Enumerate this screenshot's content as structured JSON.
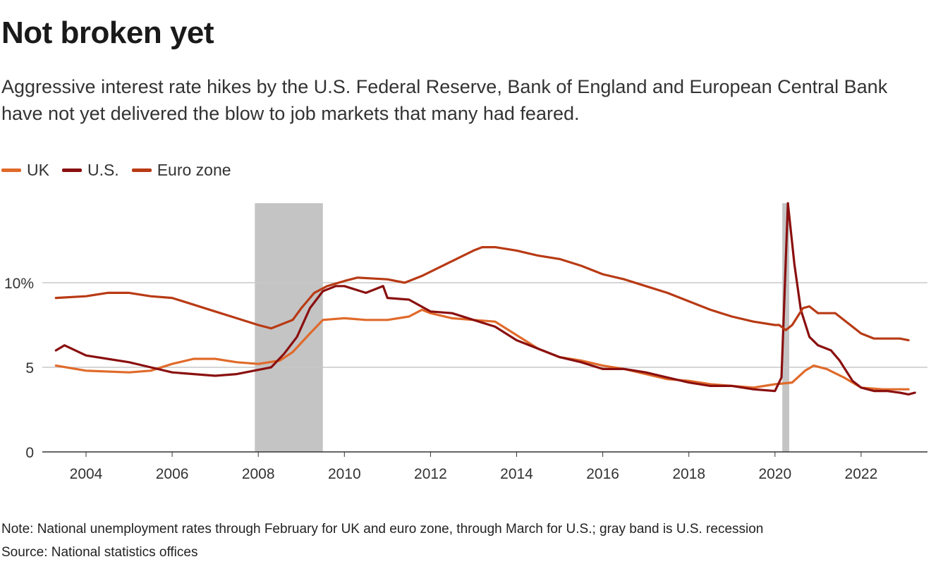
{
  "title": "Not broken yet",
  "subtitle": "Aggressive interest rate hikes by the U.S. Federal Reserve, Bank of England and European Central Bank have not yet delivered the blow to job markets that many had feared.",
  "note": "Note: National unemployment rates through February for UK and euro zone, through March for U.S.; gray band is U.S. recession",
  "source": "Source: National statistics offices",
  "chart_data": {
    "type": "line",
    "xlim": [
      2003.3,
      2023.4
    ],
    "ylim": [
      0,
      14.7
    ],
    "grid": true,
    "legend": "top-left",
    "x_ticks": [
      {
        "value": 2004,
        "label": "2004"
      },
      {
        "value": 2006,
        "label": "2006"
      },
      {
        "value": 2008,
        "label": "2008"
      },
      {
        "value": 2010,
        "label": "2010"
      },
      {
        "value": 2012,
        "label": "2012"
      },
      {
        "value": 2014,
        "label": "2014"
      },
      {
        "value": 2016,
        "label": "2016"
      },
      {
        "value": 2018,
        "label": "2018"
      },
      {
        "value": 2020,
        "label": "2020"
      },
      {
        "value": 2022,
        "label": "2022"
      }
    ],
    "y_ticks": [
      {
        "value": 0,
        "label": "0"
      },
      {
        "value": 5,
        "label": "5"
      },
      {
        "value": 10,
        "label": "10%"
      }
    ],
    "recessions": [
      [
        2007.92,
        2009.5
      ],
      [
        2020.17,
        2020.33
      ]
    ],
    "recession_color": "#c4c4c4",
    "series": [
      {
        "name": "UK",
        "color": "#e06a2a",
        "x": [
          2003.3,
          2004,
          2005,
          2005.5,
          2006,
          2006.5,
          2007,
          2007.5,
          2008,
          2008.5,
          2008.8,
          2009.2,
          2009.5,
          2010,
          2010.5,
          2011,
          2011.5,
          2011.8,
          2012,
          2012.5,
          2013,
          2013.5,
          2014,
          2014.5,
          2015,
          2015.5,
          2016,
          2016.5,
          2017,
          2017.5,
          2018,
          2018.5,
          2019,
          2019.5,
          2020,
          2020.4,
          2020.7,
          2020.9,
          2021.2,
          2021.6,
          2022,
          2022.5,
          2023.1
        ],
        "y": [
          5.1,
          4.8,
          4.7,
          4.8,
          5.2,
          5.5,
          5.5,
          5.3,
          5.2,
          5.4,
          5.9,
          7.0,
          7.8,
          7.9,
          7.8,
          7.8,
          8.0,
          8.4,
          8.2,
          7.9,
          7.8,
          7.7,
          6.9,
          6.1,
          5.6,
          5.4,
          5.1,
          4.9,
          4.6,
          4.3,
          4.2,
          4.0,
          3.9,
          3.8,
          4.0,
          4.1,
          4.8,
          5.1,
          4.9,
          4.4,
          3.8,
          3.7,
          3.7
        ]
      },
      {
        "name": "U.S.",
        "color": "#8a0f0f",
        "x": [
          2003.3,
          2003.5,
          2004,
          2004.5,
          2005,
          2005.5,
          2006,
          2006.5,
          2007,
          2007.5,
          2007.9,
          2008.3,
          2008.6,
          2008.9,
          2009.2,
          2009.5,
          2009.8,
          2010,
          2010.5,
          2010.9,
          2011,
          2011.5,
          2012,
          2012.5,
          2013,
          2013.5,
          2014,
          2014.5,
          2015,
          2015.5,
          2016,
          2016.5,
          2017,
          2017.5,
          2018,
          2018.5,
          2019,
          2019.5,
          2020,
          2020.15,
          2020.3,
          2020.45,
          2020.6,
          2020.8,
          2021,
          2021.3,
          2021.5,
          2021.8,
          2022,
          2022.3,
          2022.6,
          2022.9,
          2023.1,
          2023.25
        ],
        "y": [
          6.0,
          6.3,
          5.7,
          5.5,
          5.3,
          5.0,
          4.7,
          4.6,
          4.5,
          4.6,
          4.8,
          5.0,
          5.8,
          6.8,
          8.5,
          9.5,
          9.8,
          9.8,
          9.4,
          9.8,
          9.1,
          9.0,
          8.3,
          8.2,
          7.8,
          7.4,
          6.6,
          6.1,
          5.6,
          5.3,
          4.9,
          4.9,
          4.7,
          4.4,
          4.1,
          3.9,
          3.9,
          3.7,
          3.6,
          4.4,
          14.7,
          11.1,
          8.4,
          6.8,
          6.3,
          6.0,
          5.4,
          4.2,
          3.8,
          3.6,
          3.6,
          3.5,
          3.4,
          3.5
        ]
      },
      {
        "name": "Euro zone",
        "color": "#b83a14",
        "x": [
          2003.3,
          2004,
          2004.5,
          2005,
          2005.5,
          2006,
          2006.5,
          2007,
          2007.5,
          2008,
          2008.3,
          2008.5,
          2008.8,
          2009,
          2009.3,
          2009.6,
          2010,
          2010.3,
          2011,
          2011.4,
          2011.8,
          2012.2,
          2012.6,
          2013,
          2013.2,
          2013.5,
          2014,
          2014.5,
          2015,
          2015.5,
          2016,
          2016.5,
          2017,
          2017.5,
          2018,
          2018.5,
          2019,
          2019.5,
          2020,
          2020.1,
          2020.25,
          2020.4,
          2020.65,
          2020.8,
          2021,
          2021.4,
          2021.7,
          2022,
          2022.3,
          2022.6,
          2022.9,
          2023.1
        ],
        "y": [
          9.1,
          9.2,
          9.4,
          9.4,
          9.2,
          9.1,
          8.7,
          8.3,
          7.9,
          7.5,
          7.3,
          7.5,
          7.8,
          8.5,
          9.4,
          9.8,
          10.1,
          10.3,
          10.2,
          10.0,
          10.4,
          10.9,
          11.4,
          11.9,
          12.1,
          12.1,
          11.9,
          11.6,
          11.4,
          11.0,
          10.5,
          10.2,
          9.8,
          9.4,
          8.9,
          8.4,
          8.0,
          7.7,
          7.5,
          7.5,
          7.2,
          7.5,
          8.5,
          8.6,
          8.2,
          8.2,
          7.6,
          7.0,
          6.7,
          6.7,
          6.7,
          6.6
        ]
      }
    ]
  }
}
